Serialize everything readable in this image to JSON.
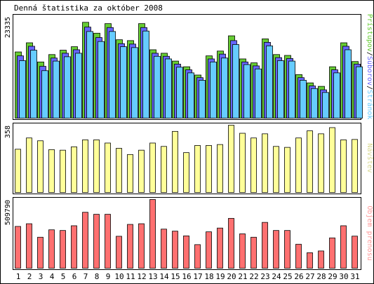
{
  "chart_data": {
    "type": "bar",
    "title": "Denná štatistika za október 2008",
    "categories": [
      "1",
      "2",
      "3",
      "4",
      "5",
      "6",
      "7",
      "8",
      "9",
      "10",
      "11",
      "12",
      "13",
      "14",
      "15",
      "16",
      "17",
      "18",
      "19",
      "20",
      "21",
      "22",
      "23",
      "24",
      "25",
      "26",
      "27",
      "28",
      "29",
      "30",
      "31"
    ],
    "weekend_days": [
      "4",
      "5",
      "11",
      "12",
      "18",
      "19",
      "25",
      "26"
    ],
    "panels": [
      {
        "name": "hits-pages-files",
        "ymax_label": "23335",
        "ymax": 23335,
        "right_legend": [
          "Prístupov",
          "Súborov",
          "Stránok"
        ],
        "legend_colors": [
          "#66cc33",
          "#6666ff",
          "#66ccff"
        ],
        "series": [
          {
            "name": "Prístupov",
            "color": "#66cc33",
            "values": [
              15200,
              17300,
              12900,
              14600,
              15600,
              16400,
              22000,
              19500,
              21700,
              18000,
              17800,
              21700,
              15700,
              14900,
              13100,
              11800,
              9900,
              14300,
              15400,
              18900,
              13600,
              12700,
              18200,
              14600,
              14400,
              10000,
              8100,
              7300,
              11800,
              17300,
              13000
            ]
          },
          {
            "name": "Súborov",
            "color": "#6666ff",
            "values": [
              14300,
              16500,
              11900,
              13800,
              14900,
              15700,
              20900,
              18500,
              20800,
              17100,
              17000,
              20800,
              14900,
              14200,
              12400,
              11100,
              9300,
              13600,
              14700,
              17800,
              12900,
              12000,
              17400,
              13900,
              13700,
              9300,
              7400,
              6500,
              11100,
              16500,
              12400
            ]
          },
          {
            "name": "Stránok",
            "color": "#66ccff",
            "values": [
              13200,
              15600,
              10900,
              13100,
              14100,
              14900,
              19900,
              17600,
              19900,
              16400,
              16200,
              20000,
              14200,
              13600,
              11700,
              10400,
              8700,
              12900,
              13800,
              16900,
              12300,
              11300,
              16600,
              13200,
              13100,
              8700,
              6800,
              5900,
              10400,
              15700,
              11800
            ]
          }
        ]
      },
      {
        "name": "visits",
        "ymax_label": "358",
        "ymax": 358,
        "right_legend": [
          "Návštev"
        ],
        "legend_colors": [
          "#d8d890"
        ],
        "series": [
          {
            "name": "Návštev",
            "color": "#ffff99",
            "values": [
              230,
              290,
              275,
              228,
              225,
              243,
              280,
              280,
              263,
              235,
              202,
              225,
              263,
              245,
              325,
              212,
              250,
              250,
              255,
              358,
              315,
              290,
              312,
              245,
              240,
              290,
              328,
              312,
              345,
              280,
              282
            ]
          }
        ]
      },
      {
        "name": "volume",
        "ymax_label": "509790",
        "ymax": 509790,
        "right_legend": [
          "Objem prenosu"
        ],
        "legend_colors": [
          "#ff9999"
        ],
        "series": [
          {
            "name": "Objem prenosu",
            "color": "#ff7070",
            "values": [
              310000,
              330000,
              230000,
              285000,
              280000,
              315000,
              415000,
              400000,
              400000,
              237000,
              325000,
              330000,
              509790,
              290000,
              275000,
              240000,
              175000,
              270000,
              298000,
              370000,
              255000,
              230000,
              340000,
              280000,
              280000,
              178000,
              115000,
              128000,
              225000,
              315000,
              238000
            ]
          }
        ]
      }
    ]
  }
}
